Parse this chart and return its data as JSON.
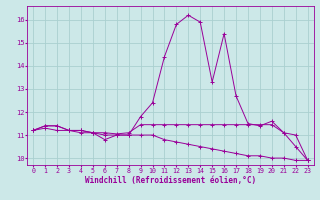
{
  "background_color": "#cce8e8",
  "grid_color": "#aad0d0",
  "line_color": "#990099",
  "xlabel": "Windchill (Refroidissement éolien,°C)",
  "xlabel_color": "#990099",
  "tick_color": "#990099",
  "xlim": [
    -0.5,
    23.5
  ],
  "ylim": [
    9.7,
    16.6
  ],
  "yticks": [
    10,
    11,
    12,
    13,
    14,
    15,
    16
  ],
  "xticks": [
    0,
    1,
    2,
    3,
    4,
    5,
    6,
    7,
    8,
    9,
    10,
    11,
    12,
    13,
    14,
    15,
    16,
    17,
    18,
    19,
    20,
    21,
    22,
    23
  ],
  "series1_x": [
    0,
    1,
    2,
    3,
    4,
    5,
    6,
    7,
    8,
    9,
    10,
    11,
    12,
    13,
    14,
    15,
    16,
    17,
    18,
    19,
    20,
    21,
    22,
    23
  ],
  "series1_y": [
    11.2,
    11.4,
    11.4,
    11.2,
    11.2,
    11.1,
    11.1,
    11.05,
    11.1,
    11.45,
    11.45,
    11.45,
    11.45,
    11.45,
    11.45,
    11.45,
    11.45,
    11.45,
    11.45,
    11.45,
    11.45,
    11.1,
    11.0,
    9.9
  ],
  "series2_x": [
    0,
    1,
    2,
    3,
    4,
    5,
    6,
    7,
    8,
    9,
    10,
    11,
    12,
    13,
    14,
    15,
    16,
    17,
    18,
    19,
    20,
    21,
    22,
    23
  ],
  "series2_y": [
    11.2,
    11.4,
    11.4,
    11.2,
    11.2,
    11.1,
    10.8,
    11.0,
    11.0,
    11.8,
    12.4,
    14.4,
    15.8,
    16.2,
    15.9,
    13.3,
    15.4,
    12.7,
    11.5,
    11.4,
    11.6,
    11.1,
    10.5,
    9.9
  ],
  "series3_x": [
    0,
    1,
    2,
    3,
    4,
    5,
    6,
    7,
    8,
    9,
    10,
    11,
    12,
    13,
    14,
    15,
    16,
    17,
    18,
    19,
    20,
    21,
    22,
    23
  ],
  "series3_y": [
    11.2,
    11.3,
    11.2,
    11.2,
    11.1,
    11.1,
    11.0,
    11.0,
    11.0,
    11.0,
    11.0,
    10.8,
    10.7,
    10.6,
    10.5,
    10.4,
    10.3,
    10.2,
    10.1,
    10.1,
    10.0,
    10.0,
    9.9,
    9.9
  ],
  "ylabel_fontsize": 5.0,
  "xlabel_fontsize": 5.5,
  "tick_fontsize": 4.8,
  "lw": 0.7,
  "ms": 3.0
}
